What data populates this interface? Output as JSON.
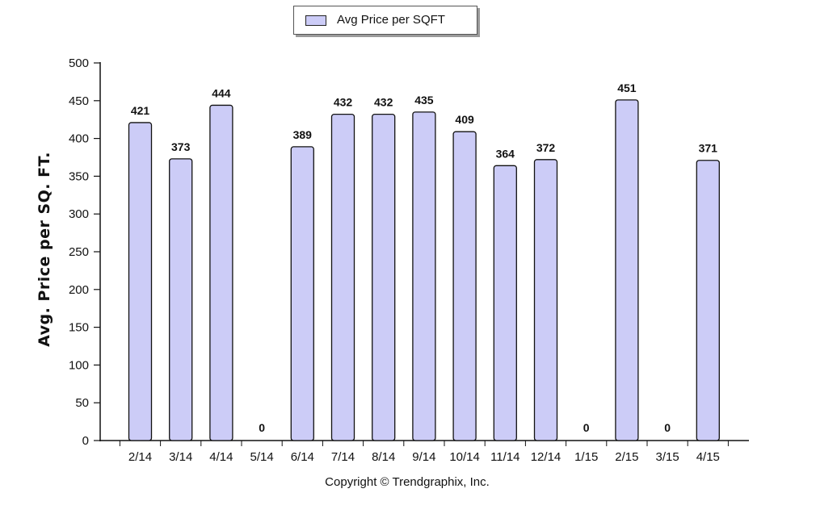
{
  "chart_data": {
    "type": "bar",
    "categories": [
      "2/14",
      "3/14",
      "4/14",
      "5/14",
      "6/14",
      "7/14",
      "8/14",
      "9/14",
      "10/14",
      "11/14",
      "12/14",
      "1/15",
      "2/15",
      "3/15",
      "4/15"
    ],
    "series": [
      {
        "name": "Avg Price per SQFT",
        "values": [
          421,
          373,
          444,
          0,
          389,
          432,
          432,
          435,
          409,
          364,
          372,
          0,
          451,
          0,
          371
        ]
      }
    ],
    "data_labels": [
      "421",
      "373",
      "444",
      "0",
      "389",
      "432",
      "432",
      "435",
      "409",
      "364",
      "372",
      "0",
      "451",
      "0",
      "371"
    ],
    "ylabel": "Avg. Price per SQ. FT.",
    "ylim": [
      0,
      500
    ],
    "yticks": [
      0,
      50,
      100,
      150,
      200,
      250,
      300,
      350,
      400,
      450,
      500
    ],
    "grid": false,
    "legend_position": "top-center",
    "bar_color": "#ccccf7",
    "bar_stroke": "#111111"
  },
  "footer": "Copyright © Trendgraphix, Inc."
}
